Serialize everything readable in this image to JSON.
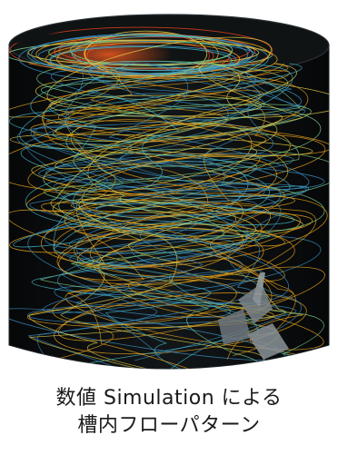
{
  "figure": {
    "caption_line1": "数値 Simulation による",
    "caption_line2": "槽内フローパターン"
  },
  "colors": {
    "tank_body": "#0b0d0e",
    "tank_edge": "#2a3135",
    "streamline_cool": "#3a8fc0",
    "streamline_cyan": "#46b7c9",
    "streamline_warm": "#e6a21c",
    "streamline_yellow": "#e6d24a",
    "streamline_hot": "#e8421e",
    "streamline_green": "#7fd08a",
    "impeller": "#8a9298"
  }
}
